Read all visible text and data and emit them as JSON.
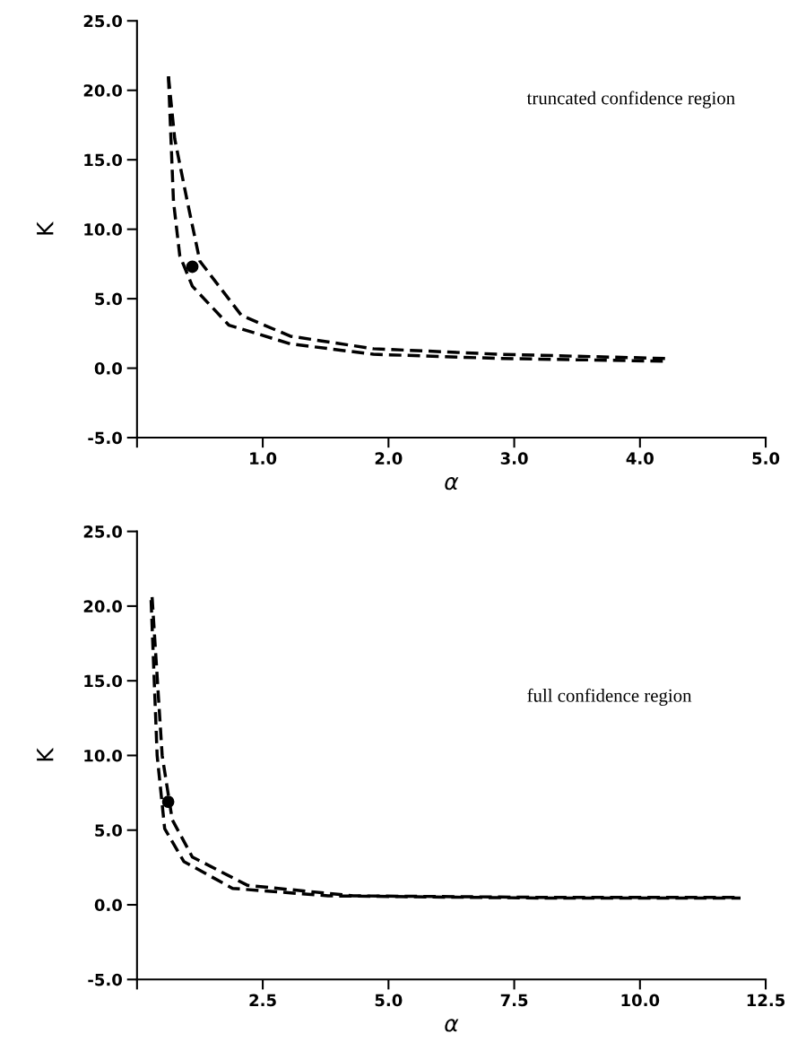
{
  "chart_data": [
    {
      "type": "line",
      "xlabel": "α",
      "ylabel": "K",
      "annotations": [
        "truncated confidence region"
      ],
      "line_style": "dashed",
      "marker": "none",
      "grid": false,
      "xlim": [
        0,
        5
      ],
      "ylim": [
        -5,
        25
      ],
      "xticks": [
        {
          "value": 0,
          "label": null
        },
        {
          "value": 1,
          "label": "1.0"
        },
        {
          "value": 2,
          "label": "2.0"
        },
        {
          "value": 3,
          "label": "3.0"
        },
        {
          "value": 4,
          "label": "4.0"
        },
        {
          "value": 5,
          "label": "5.0"
        }
      ],
      "yticks": [
        {
          "value": -5,
          "label": "-5.0"
        },
        {
          "value": 0,
          "label": "0.0"
        },
        {
          "value": 5,
          "label": "5.0"
        },
        {
          "value": 10,
          "label": "10.0"
        },
        {
          "value": 15,
          "label": "15.0"
        },
        {
          "value": 20,
          "label": "20.0"
        },
        {
          "value": 25,
          "label": "25.0"
        }
      ],
      "series": [
        {
          "color": "#000000",
          "x": [
            0.25,
            0.3,
            0.4,
            0.5,
            0.83,
            1.22,
            1.88,
            2.88,
            4.2
          ],
          "values": [
            21,
            16.5,
            12,
            7.7,
            3.8,
            2.3,
            1.4,
            1.0,
            0.7
          ]
        },
        {
          "color": "#000000",
          "x": [
            0.25,
            0.29,
            0.34,
            0.44,
            0.73,
            1.22,
            1.88,
            2.88,
            4.2
          ],
          "values": [
            21,
            12,
            8.1,
            5.9,
            3.1,
            1.75,
            1.0,
            0.7,
            0.5
          ]
        },
        {
          "type": "scatter",
          "marker": "circle",
          "color": "#000000",
          "x": [
            0.44
          ],
          "values": [
            7.3
          ]
        }
      ]
    },
    {
      "type": "line",
      "xlabel": "α",
      "ylabel": "K",
      "annotations": [
        "full confidence region"
      ],
      "line_style": "dashed",
      "marker": "none",
      "grid": false,
      "xlim": [
        0,
        12.5
      ],
      "ylim": [
        -5,
        25
      ],
      "xticks": [
        {
          "value": 0,
          "label": null
        },
        2.5,
        {
          "value": 5,
          "label": "5.0"
        },
        7.5,
        {
          "value": 10,
          "label": "10.0"
        },
        12.5
      ],
      "yticks": [
        {
          "value": -5,
          "label": "-5.0"
        },
        {
          "value": 0,
          "label": "0.0"
        },
        {
          "value": 5,
          "label": "5.0"
        },
        {
          "value": 10,
          "label": "10.0"
        },
        {
          "value": 15,
          "label": "15.0"
        },
        {
          "value": 20,
          "label": "20.0"
        },
        {
          "value": 25,
          "label": "25.0"
        }
      ],
      "series": [
        {
          "color": "#000000",
          "x": [
            0.3,
            0.5,
            0.7,
            1.1,
            2.2,
            4.3,
            8.0,
            12.0
          ],
          "values": [
            20.6,
            10,
            5.7,
            3.2,
            1.3,
            0.6,
            0.5,
            0.5
          ]
        },
        {
          "color": "#000000",
          "x": [
            0.28,
            0.4,
            0.55,
            0.93,
            1.9,
            3.8,
            8.0,
            12.0
          ],
          "values": [
            20.4,
            10,
            5.1,
            2.9,
            1.1,
            0.6,
            0.45,
            0.45
          ]
        },
        {
          "type": "scatter",
          "marker": "circle",
          "color": "#000000",
          "x": [
            0.62
          ],
          "values": [
            6.9
          ]
        }
      ]
    }
  ]
}
